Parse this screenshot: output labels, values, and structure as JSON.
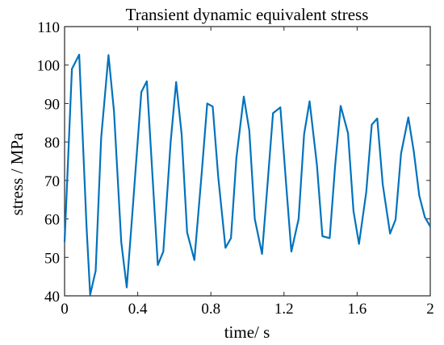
{
  "chart_data": {
    "type": "line",
    "title": "Transient dynamic equivalent stress",
    "xlabel": "time/ s",
    "ylabel": "stress / MPa",
    "xlim": [
      0,
      2
    ],
    "ylim": [
      40,
      110
    ],
    "xticks": [
      0,
      0.4,
      0.8,
      1.2,
      1.6,
      2
    ],
    "xtick_labels": [
      "0",
      "0.4",
      "0.8",
      "1.2",
      "1.6",
      "2"
    ],
    "yticks": [
      40,
      50,
      60,
      70,
      80,
      90,
      100,
      110
    ],
    "ytick_labels": [
      "40",
      "50",
      "60",
      "70",
      "80",
      "90",
      "100",
      "110"
    ],
    "grid": false,
    "series": [
      {
        "color": "#0072BD",
        "x": [
          0.0,
          0.04,
          0.08,
          0.12,
          0.14,
          0.17,
          0.2,
          0.24,
          0.27,
          0.31,
          0.34,
          0.37,
          0.42,
          0.45,
          0.51,
          0.54,
          0.58,
          0.61,
          0.64,
          0.67,
          0.71,
          0.75,
          0.78,
          0.81,
          0.84,
          0.88,
          0.91,
          0.94,
          0.98,
          1.01,
          1.04,
          1.08,
          1.11,
          1.14,
          1.18,
          1.21,
          1.24,
          1.28,
          1.31,
          1.34,
          1.38,
          1.41,
          1.45,
          1.48,
          1.51,
          1.55,
          1.58,
          1.61,
          1.65,
          1.68,
          1.71,
          1.74,
          1.78,
          1.81,
          1.84,
          1.88,
          1.91,
          1.94,
          1.97,
          2.0
        ],
        "y": [
          54.0,
          99.0,
          102.7,
          58.0,
          40.3,
          46.5,
          81.0,
          102.6,
          88.0,
          54.0,
          42.2,
          61.0,
          93.0,
          95.8,
          48.0,
          51.5,
          80.0,
          95.6,
          82.0,
          56.5,
          49.3,
          72.0,
          90.0,
          89.2,
          71.0,
          52.5,
          55.0,
          76.0,
          91.8,
          83.0,
          60.0,
          50.9,
          69.0,
          87.5,
          89.0,
          70.0,
          51.5,
          60.0,
          82.0,
          90.6,
          74.0,
          55.5,
          55.0,
          74.0,
          89.4,
          82.3,
          62.0,
          53.5,
          67.0,
          84.5,
          86.1,
          69.0,
          56.2,
          59.8,
          77.0,
          86.4,
          77.5,
          66.0,
          60.5,
          58.0
        ]
      }
    ]
  }
}
